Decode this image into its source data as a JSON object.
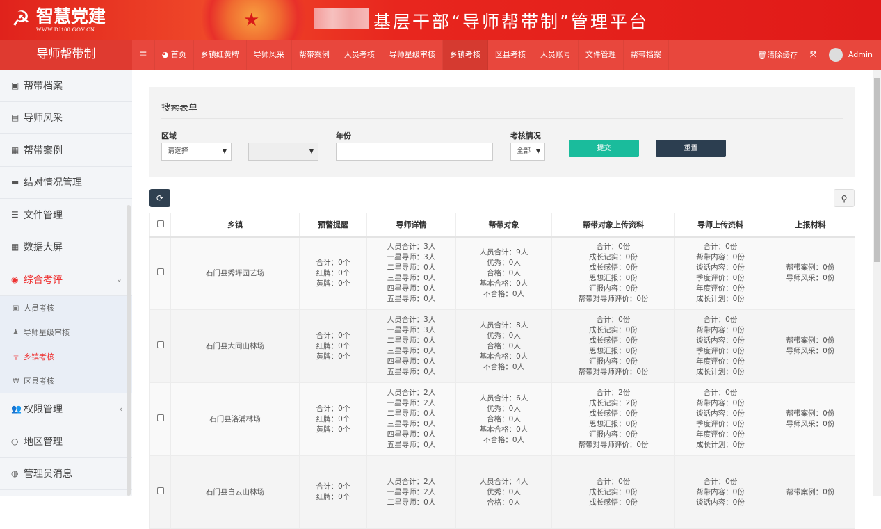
{
  "header": {
    "logo_text": "智慧党建",
    "logo_url_text": "WWW.DJ100.GOV.CN",
    "title": "基层干部“导师帮带制”管理平台"
  },
  "nav": {
    "brand": "导师帮带制",
    "items": [
      "首页",
      "乡镇红黄牌",
      "导师风采",
      "帮带案例",
      "人员考核",
      "导师星级审核",
      "乡镇考核",
      "区县考核",
      "人员账号",
      "文件管理",
      "帮带档案"
    ],
    "active": "乡镇考核",
    "clear_cache": "清除缓存",
    "user": "Admin"
  },
  "sidebar": {
    "items": [
      {
        "label": "帮带档案",
        "icon": "archive-icon"
      },
      {
        "label": "导师风采",
        "icon": "file-icon"
      },
      {
        "label": "帮带案例",
        "icon": "calendar-icon"
      },
      {
        "label": "结对情况管理",
        "icon": "briefcase-icon"
      },
      {
        "label": "文件管理",
        "icon": "list-icon"
      },
      {
        "label": "数据大屏",
        "icon": "grid-icon"
      },
      {
        "label": "综合考评",
        "icon": "target-icon"
      }
    ],
    "sub_items": [
      {
        "label": "人员考核",
        "icon": "user-card-icon"
      },
      {
        "label": "导师星级审核",
        "icon": "user-tie-icon"
      },
      {
        "label": "乡镇考核",
        "icon": "yuan-icon"
      },
      {
        "label": "区县考核",
        "icon": "won-icon"
      }
    ],
    "after_items": [
      {
        "label": "权限管理",
        "icon": "users-icon"
      },
      {
        "label": "地区管理",
        "icon": "circle-icon"
      },
      {
        "label": "管理员消息",
        "icon": "message-icon"
      }
    ]
  },
  "search": {
    "title": "搜索表单",
    "region_label": "区域",
    "region_value": "请选择",
    "year_label": "年份",
    "year_value": "",
    "status_label": "考核情况",
    "status_value": "全部",
    "submit": "提交",
    "reset": "重置"
  },
  "colors": {
    "primary": "#e8473d",
    "submit": "#1abc9c",
    "reset": "#2c3e50"
  },
  "table": {
    "headers": [
      "乡镇",
      "预警提醒",
      "导师详情",
      "帮带对象",
      "帮带对象上传资料",
      "导师上传资料",
      "上报材料"
    ],
    "rows": [
      {
        "town": "石门县秀坪园艺场",
        "warn": [
          "合计：0个",
          "红牌：0个",
          "黄牌：0个"
        ],
        "mentor": [
          "人员合计：3人",
          "一星导师：3人",
          "二星导师：0人",
          "三星导师：0人",
          "四星导师：0人",
          "五星导师：0人"
        ],
        "target": [
          "人员合计：9人",
          "优秀：0人",
          "合格：0人",
          "基本合格：0人",
          "不合格：0人"
        ],
        "target_upload": [
          "合计：0份",
          "成长记实：0份",
          "成长感悟：0份",
          "思想汇报：0份",
          "汇报内容：0份",
          "帮带对导师评价：0份"
        ],
        "mentor_upload": [
          "合计：0份",
          "帮带内容：0份",
          "谈话内容：0份",
          "季度评价：0份",
          "年度评价：0份",
          "成长计划：0份"
        ],
        "report": [
          "帮带案例：0份",
          "导师风采：0份"
        ]
      },
      {
        "town": "石门县大同山林场",
        "warn": [
          "合计：0个",
          "红牌：0个",
          "黄牌：0个"
        ],
        "mentor": [
          "人员合计：3人",
          "一星导师：3人",
          "二星导师：0人",
          "三星导师：0人",
          "四星导师：0人",
          "五星导师：0人"
        ],
        "target": [
          "人员合计：8人",
          "优秀：0人",
          "合格：0人",
          "基本合格：0人",
          "不合格：0人"
        ],
        "target_upload": [
          "合计：0份",
          "成长记实：0份",
          "成长感悟：0份",
          "思想汇报：0份",
          "汇报内容：0份",
          "帮带对导师评价：0份"
        ],
        "mentor_upload": [
          "合计：0份",
          "帮带内容：0份",
          "谈话内容：0份",
          "季度评价：0份",
          "年度评价：0份",
          "成长计划：0份"
        ],
        "report": [
          "帮带案例：0份",
          "导师风采：0份"
        ]
      },
      {
        "town": "石门县洛浦林场",
        "warn": [
          "合计：0个",
          "红牌：0个",
          "黄牌：0个"
        ],
        "mentor": [
          "人员合计：2人",
          "一星导师：2人",
          "二星导师：0人",
          "三星导师：0人",
          "四星导师：0人",
          "五星导师：0人"
        ],
        "target": [
          "人员合计：6人",
          "优秀：0人",
          "合格：0人",
          "基本合格：0人",
          "不合格：0人"
        ],
        "target_upload": [
          "合计：2份",
          "成长记实：2份",
          "成长感悟：0份",
          "思想汇报：0份",
          "汇报内容：0份",
          "帮带对导师评价：0份"
        ],
        "mentor_upload": [
          "合计：0份",
          "帮带内容：0份",
          "谈话内容：0份",
          "季度评价：0份",
          "年度评价：0份",
          "成长计划：0份"
        ],
        "report": [
          "帮带案例：0份",
          "导师风采：0份"
        ]
      },
      {
        "town": "石门县白云山林场",
        "warn": [
          "合计：0个",
          "红牌：0个"
        ],
        "mentor": [
          "人员合计：2人",
          "一星导师：2人",
          "二星导师：0人"
        ],
        "target": [
          "人员合计：4人",
          "优秀：0人",
          "合格：0人"
        ],
        "target_upload": [
          "合计：0份",
          "成长记实：0份",
          "成长感悟：0份"
        ],
        "mentor_upload": [
          "合计：0份",
          "帮带内容：0份",
          "谈话内容：0份"
        ],
        "report": [
          "帮带案例：0份"
        ]
      }
    ]
  }
}
